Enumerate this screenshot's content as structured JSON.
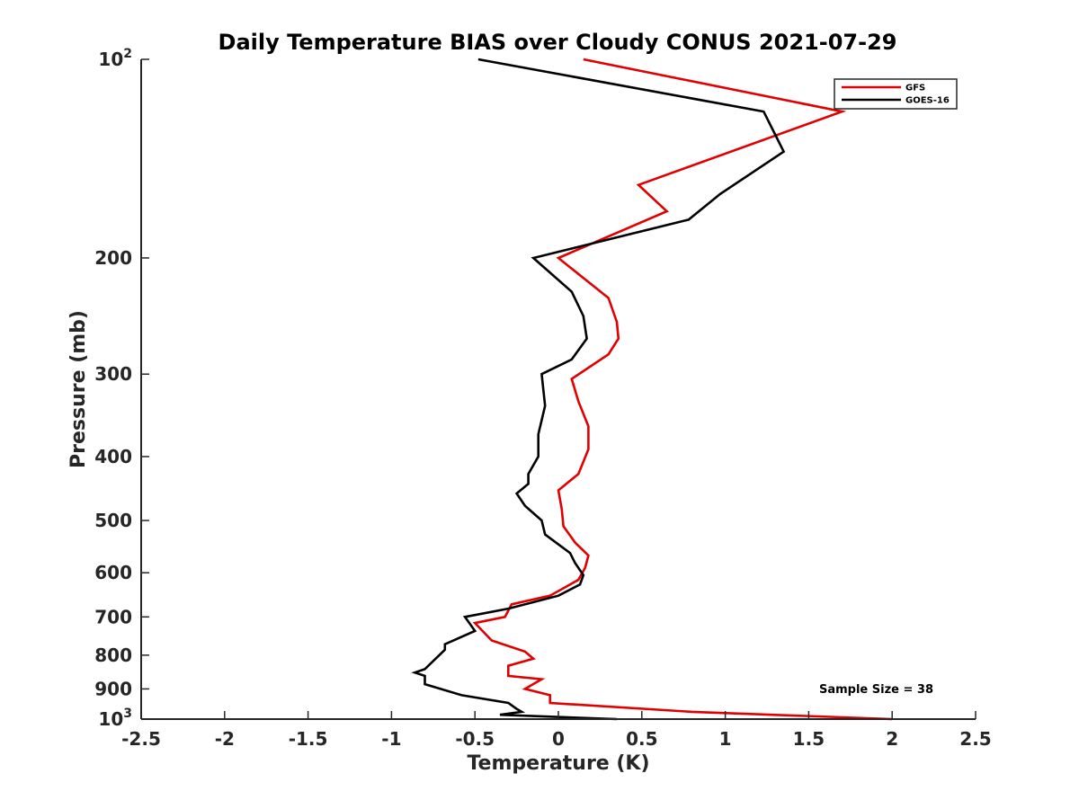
{
  "chart_data": {
    "type": "line",
    "title": "Daily Temperature BIAS over Cloudy CONUS 2021-07-29",
    "xlabel": "Temperature (K)",
    "ylabel": "Pressure (mb)",
    "xlim": [
      -2.5,
      2.5
    ],
    "ylim": [
      100,
      1000
    ],
    "y_scale": "log",
    "y_reversed": true,
    "grid": false,
    "legend_position": "top-right",
    "x_ticks": [
      -2.5,
      -2,
      -1.5,
      -1,
      -0.5,
      0,
      0.5,
      1,
      1.5,
      2,
      2.5
    ],
    "x_tick_labels": [
      "-2.5",
      "-2",
      "-1.5",
      "-1",
      "-0.5",
      "0",
      "0.5",
      "1",
      "1.5",
      "2",
      "2.5"
    ],
    "y_ticks": [
      {
        "value": 100,
        "base": "10",
        "exp": "2"
      },
      {
        "value": 200,
        "label": "200"
      },
      {
        "value": 300,
        "label": "300"
      },
      {
        "value": 400,
        "label": "400"
      },
      {
        "value": 500,
        "label": "500"
      },
      {
        "value": 600,
        "label": "600"
      },
      {
        "value": 700,
        "label": "700"
      },
      {
        "value": 800,
        "label": "800"
      },
      {
        "value": 900,
        "label": "900"
      },
      {
        "value": 1000,
        "base": "10",
        "exp": "3"
      }
    ],
    "series": [
      {
        "name": "GFS",
        "color": "#e00000",
        "points": [
          [
            0.15,
            100
          ],
          [
            1.7,
            120
          ],
          [
            0.48,
            155
          ],
          [
            0.65,
            170
          ],
          [
            0.0,
            200
          ],
          [
            0.3,
            230
          ],
          [
            0.35,
            250
          ],
          [
            0.36,
            265
          ],
          [
            0.3,
            280
          ],
          [
            0.08,
            305
          ],
          [
            0.12,
            330
          ],
          [
            0.18,
            360
          ],
          [
            0.18,
            390
          ],
          [
            0.12,
            425
          ],
          [
            0.0,
            450
          ],
          [
            0.02,
            480
          ],
          [
            0.03,
            510
          ],
          [
            0.1,
            540
          ],
          [
            0.18,
            565
          ],
          [
            0.16,
            590
          ],
          [
            0.12,
            615
          ],
          [
            -0.05,
            650
          ],
          [
            -0.28,
            670
          ],
          [
            -0.32,
            700
          ],
          [
            -0.5,
            715
          ],
          [
            -0.4,
            760
          ],
          [
            -0.2,
            790
          ],
          [
            -0.15,
            810
          ],
          [
            -0.3,
            830
          ],
          [
            -0.3,
            860
          ],
          [
            -0.1,
            870
          ],
          [
            -0.2,
            900
          ],
          [
            -0.05,
            920
          ],
          [
            -0.05,
            945
          ],
          [
            0.8,
            975
          ],
          [
            2.0,
            1000
          ]
        ]
      },
      {
        "name": "GOES-16",
        "color": "#000000",
        "points": [
          [
            -0.48,
            100
          ],
          [
            1.23,
            120
          ],
          [
            1.35,
            138
          ],
          [
            0.97,
            160
          ],
          [
            0.78,
            175
          ],
          [
            -0.15,
            200
          ],
          [
            0.08,
            225
          ],
          [
            0.15,
            245
          ],
          [
            0.17,
            265
          ],
          [
            0.08,
            285
          ],
          [
            -0.1,
            300
          ],
          [
            -0.08,
            335
          ],
          [
            -0.12,
            370
          ],
          [
            -0.12,
            400
          ],
          [
            -0.18,
            425
          ],
          [
            -0.18,
            440
          ],
          [
            -0.25,
            455
          ],
          [
            -0.2,
            475
          ],
          [
            -0.1,
            500
          ],
          [
            -0.08,
            525
          ],
          [
            0.07,
            560
          ],
          [
            0.1,
            580
          ],
          [
            0.15,
            605
          ],
          [
            0.13,
            625
          ],
          [
            0.0,
            650
          ],
          [
            -0.3,
            680
          ],
          [
            -0.56,
            700
          ],
          [
            -0.5,
            735
          ],
          [
            -0.68,
            770
          ],
          [
            -0.68,
            785
          ],
          [
            -0.8,
            840
          ],
          [
            -0.86,
            850
          ],
          [
            -0.8,
            860
          ],
          [
            -0.8,
            885
          ],
          [
            -0.58,
            920
          ],
          [
            -0.3,
            945
          ],
          [
            -0.25,
            965
          ],
          [
            -0.22,
            975
          ],
          [
            -0.35,
            985
          ],
          [
            0.35,
            1000
          ]
        ]
      }
    ],
    "annotations": [
      "Sample Size = 38"
    ]
  }
}
